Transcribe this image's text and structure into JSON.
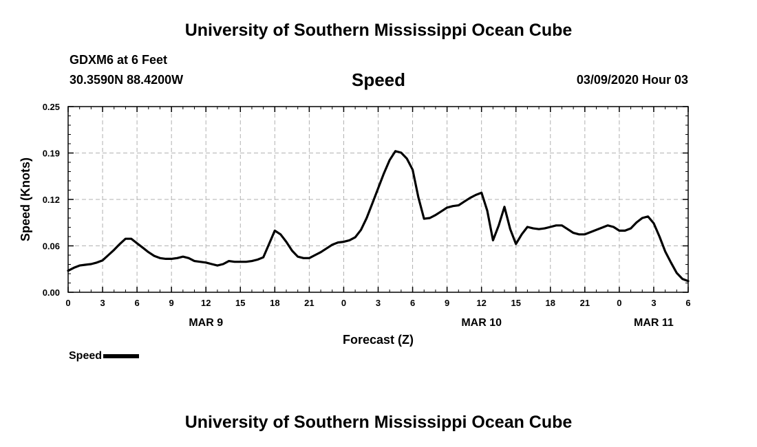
{
  "header": {
    "title": "University of Southern Mississippi Ocean Cube",
    "station": "GDXM6 at 6 Feet",
    "coords": "30.3590N 88.4200W",
    "variable": "Speed",
    "datetime": "03/09/2020 Hour 03"
  },
  "footer": {
    "title": "University of Southern Mississippi Ocean Cube"
  },
  "legend": {
    "label": "Speed",
    "color": "#000000"
  },
  "chart_data": {
    "type": "line",
    "xlabel": "Forecast (Z)",
    "ylabel": "Speed (Knots)",
    "xlim": [
      0,
      54
    ],
    "ylim": [
      0.0,
      0.25
    ],
    "grid": true,
    "y_ticks": [
      {
        "v": 0.0,
        "label": "0.00"
      },
      {
        "v": 0.0625,
        "label": "0.06"
      },
      {
        "v": 0.125,
        "label": "0.12"
      },
      {
        "v": 0.1875,
        "label": "0.19"
      },
      {
        "v": 0.25,
        "label": "0.25"
      }
    ],
    "x_ticks": [
      {
        "v": 0,
        "label": "0"
      },
      {
        "v": 3,
        "label": "3"
      },
      {
        "v": 6,
        "label": "6"
      },
      {
        "v": 9,
        "label": "9"
      },
      {
        "v": 12,
        "label": "12"
      },
      {
        "v": 15,
        "label": "15"
      },
      {
        "v": 18,
        "label": "18"
      },
      {
        "v": 21,
        "label": "21"
      },
      {
        "v": 24,
        "label": "0"
      },
      {
        "v": 27,
        "label": "3"
      },
      {
        "v": 30,
        "label": "6"
      },
      {
        "v": 33,
        "label": "9"
      },
      {
        "v": 36,
        "label": "12"
      },
      {
        "v": 39,
        "label": "15"
      },
      {
        "v": 42,
        "label": "18"
      },
      {
        "v": 45,
        "label": "21"
      },
      {
        "v": 48,
        "label": "0"
      },
      {
        "v": 51,
        "label": "3"
      },
      {
        "v": 54,
        "label": "6"
      }
    ],
    "day_labels": [
      {
        "v": 12,
        "label": "MAR 9"
      },
      {
        "v": 36,
        "label": "MAR 10"
      },
      {
        "v": 51,
        "label": "MAR 11"
      }
    ],
    "series": [
      {
        "name": "Speed",
        "x": [
          0,
          0.5,
          1,
          1.5,
          2,
          2.5,
          3,
          3.5,
          4,
          4.5,
          5,
          5.5,
          6,
          6.5,
          7,
          7.5,
          8,
          8.5,
          9,
          9.5,
          10,
          10.5,
          11,
          11.5,
          12,
          12.5,
          13,
          13.5,
          14,
          14.5,
          15,
          15.5,
          16,
          16.5,
          17,
          17.5,
          18,
          18.5,
          19,
          19.5,
          20,
          20.5,
          21,
          21.5,
          22,
          22.5,
          23,
          23.5,
          24,
          24.5,
          25,
          25.5,
          26,
          26.5,
          27,
          27.5,
          28,
          28.5,
          29,
          29.5,
          30,
          30.5,
          31,
          31.5,
          32,
          32.5,
          33,
          33.5,
          34,
          34.5,
          35,
          35.5,
          36,
          36.5,
          37,
          37.5,
          38,
          38.5,
          39,
          39.5,
          40,
          40.5,
          41,
          41.5,
          42,
          42.5,
          43,
          43.5,
          44,
          44.5,
          45,
          45.5,
          46,
          46.5,
          47,
          47.5,
          48,
          48.5,
          49,
          49.5,
          50,
          50.5,
          51,
          51.5,
          52,
          52.5,
          53,
          53.5,
          54
        ],
        "values": [
          0.029,
          0.033,
          0.036,
          0.037,
          0.038,
          0.04,
          0.043,
          0.05,
          0.057,
          0.065,
          0.072,
          0.072,
          0.066,
          0.06,
          0.054,
          0.049,
          0.046,
          0.045,
          0.045,
          0.046,
          0.048,
          0.046,
          0.042,
          0.041,
          0.04,
          0.038,
          0.036,
          0.038,
          0.042,
          0.041,
          0.041,
          0.041,
          0.042,
          0.044,
          0.047,
          0.065,
          0.083,
          0.078,
          0.068,
          0.056,
          0.048,
          0.046,
          0.046,
          0.05,
          0.054,
          0.059,
          0.064,
          0.067,
          0.068,
          0.07,
          0.074,
          0.084,
          0.1,
          0.12,
          0.14,
          0.16,
          0.178,
          0.19,
          0.188,
          0.18,
          0.165,
          0.128,
          0.099,
          0.1,
          0.104,
          0.109,
          0.114,
          0.116,
          0.117,
          0.122,
          0.127,
          0.131,
          0.134,
          0.11,
          0.07,
          0.09,
          0.115,
          0.085,
          0.065,
          0.078,
          0.088,
          0.086,
          0.085,
          0.086,
          0.088,
          0.09,
          0.09,
          0.085,
          0.08,
          0.078,
          0.078,
          0.081,
          0.084,
          0.087,
          0.09,
          0.088,
          0.083,
          0.083,
          0.086,
          0.094,
          0.1,
          0.102,
          0.093,
          0.075,
          0.055,
          0.04,
          0.026,
          0.018,
          0.015
        ]
      }
    ]
  }
}
